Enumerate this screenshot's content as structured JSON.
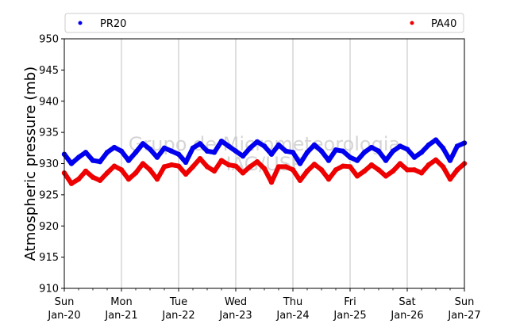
{
  "chart_data": {
    "type": "scatter",
    "ylabel": "Atmospheric pressure (mb)",
    "xlabel": "",
    "ylim": [
      910,
      950
    ],
    "yticks": [
      910,
      915,
      920,
      925,
      930,
      935,
      940,
      945,
      950
    ],
    "xlim": [
      0,
      7
    ],
    "xticks": [
      {
        "x": 0,
        "day": "Sun",
        "date": "Jan-20"
      },
      {
        "x": 1,
        "day": "Mon",
        "date": "Jan-21"
      },
      {
        "x": 2,
        "day": "Tue",
        "date": "Jan-22"
      },
      {
        "x": 3,
        "day": "Wed",
        "date": "Jan-23"
      },
      {
        "x": 4,
        "day": "Thu",
        "date": "Jan-24"
      },
      {
        "x": 5,
        "day": "Fri",
        "date": "Jan-25"
      },
      {
        "x": 6,
        "day": "Sat",
        "date": "Jan-26"
      },
      {
        "x": 7,
        "day": "Sun",
        "date": "Jan-27"
      }
    ],
    "grid": "vertical",
    "legend_position": "top",
    "watermark": {
      "line1": "Grupo de Micrometeorologia",
      "line2": "IAG/USP"
    },
    "series": [
      {
        "name": "PR20",
        "color": "#0000ee",
        "x": [
          0,
          0.125,
          0.25,
          0.375,
          0.5,
          0.625,
          0.75,
          0.875,
          1,
          1.125,
          1.25,
          1.375,
          1.5,
          1.625,
          1.75,
          1.875,
          2,
          2.125,
          2.25,
          2.375,
          2.5,
          2.625,
          2.75,
          2.875,
          3,
          3.125,
          3.25,
          3.375,
          3.5,
          3.625,
          3.75,
          3.875,
          4,
          4.125,
          4.25,
          4.375,
          4.5,
          4.625,
          4.75,
          4.875,
          5,
          5.125,
          5.25,
          5.375,
          5.5,
          5.625,
          5.75,
          5.875,
          6,
          6.125,
          6.25,
          6.375,
          6.5,
          6.625,
          6.75,
          6.875,
          7
        ],
        "y": [
          931.5,
          930.0,
          931.0,
          931.8,
          930.5,
          930.3,
          931.8,
          932.6,
          932.0,
          930.5,
          931.8,
          933.2,
          932.3,
          931.0,
          932.5,
          932.0,
          931.5,
          930.2,
          932.5,
          933.2,
          932.0,
          931.8,
          933.6,
          932.8,
          932.0,
          931.2,
          932.5,
          933.5,
          932.8,
          931.5,
          933.0,
          932.0,
          931.8,
          930.0,
          931.8,
          933.0,
          932.0,
          930.5,
          932.2,
          932.0,
          931.0,
          930.5,
          931.8,
          932.6,
          932.0,
          930.5,
          932.0,
          932.8,
          932.3,
          931.0,
          931.8,
          933.0,
          933.8,
          932.5,
          930.5,
          932.8,
          933.3
        ]
      },
      {
        "name": "PA40",
        "color": "#ee0000",
        "x": [
          0,
          0.125,
          0.25,
          0.375,
          0.5,
          0.625,
          0.75,
          0.875,
          1,
          1.125,
          1.25,
          1.375,
          1.5,
          1.625,
          1.75,
          1.875,
          2,
          2.125,
          2.25,
          2.375,
          2.5,
          2.625,
          2.75,
          2.875,
          3,
          3.125,
          3.25,
          3.375,
          3.5,
          3.625,
          3.75,
          3.875,
          4,
          4.125,
          4.25,
          4.375,
          4.5,
          4.625,
          4.75,
          4.875,
          5,
          5.125,
          5.25,
          5.375,
          5.5,
          5.625,
          5.75,
          5.875,
          6,
          6.125,
          6.25,
          6.375,
          6.5,
          6.625,
          6.75,
          6.875,
          7
        ],
        "y": [
          928.5,
          926.8,
          927.5,
          928.8,
          927.8,
          927.3,
          928.5,
          929.6,
          929.0,
          927.5,
          928.5,
          930.0,
          929.0,
          927.5,
          929.5,
          929.8,
          929.6,
          928.3,
          929.5,
          930.8,
          929.5,
          928.8,
          930.5,
          929.8,
          929.6,
          928.5,
          929.5,
          930.3,
          929.2,
          927.0,
          929.5,
          929.5,
          929.0,
          927.3,
          928.8,
          929.9,
          929.0,
          927.5,
          929.0,
          929.6,
          929.5,
          928.0,
          928.8,
          929.8,
          929.0,
          928.0,
          928.8,
          930.0,
          929.0,
          929.0,
          928.5,
          929.8,
          930.6,
          929.5,
          927.5,
          929.0,
          930.0
        ]
      }
    ]
  }
}
